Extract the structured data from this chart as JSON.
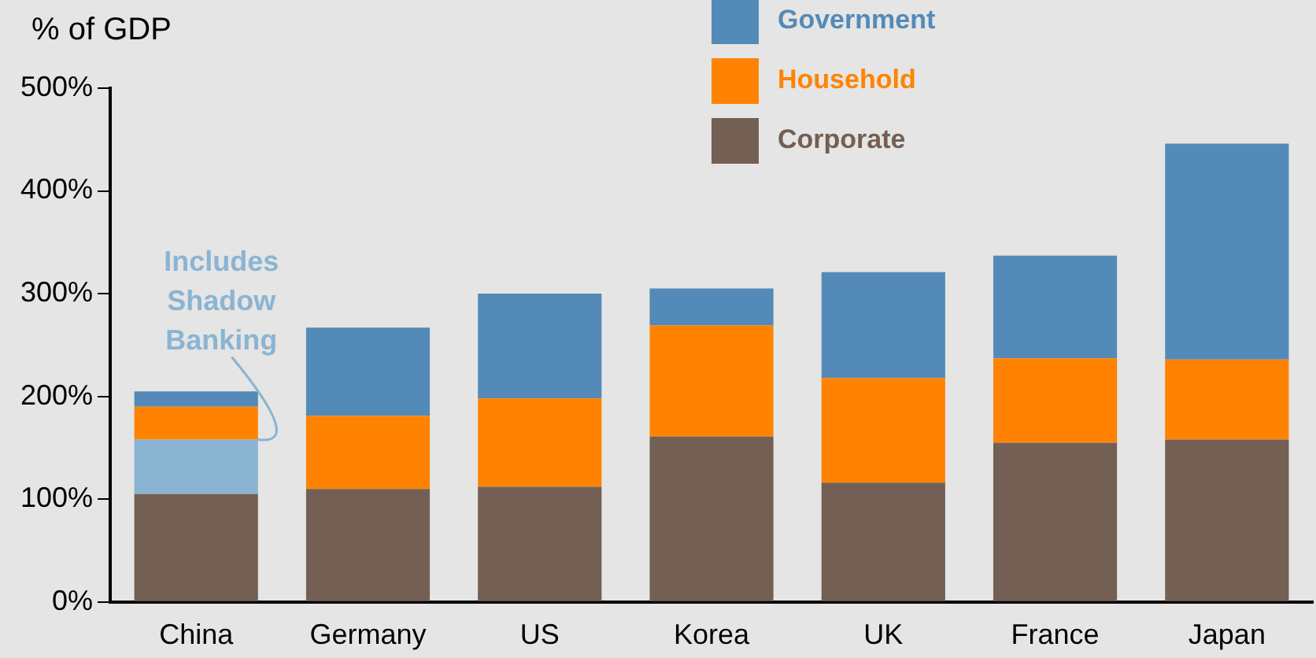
{
  "chart_data": {
    "type": "bar",
    "stacked": true,
    "ylabel": "% of GDP",
    "categories": [
      "China",
      "Germany",
      "US",
      "Korea",
      "UK",
      "France",
      "Japan"
    ],
    "series": [
      {
        "name": "Corporate",
        "color": "#735f53",
        "values": [
          105,
          110,
          112,
          161,
          116,
          155,
          158
        ]
      },
      {
        "color": "#8ab4d2",
        "values": [
          53,
          null,
          null,
          null,
          null,
          null,
          null
        ]
      },
      {
        "name": "Household",
        "color": "#ff8300",
        "values": [
          32,
          71,
          86,
          108,
          102,
          82,
          78
        ]
      },
      {
        "name": "Government",
        "color": "#548ab8",
        "values": [
          15,
          86,
          102,
          36,
          103,
          100,
          210
        ]
      }
    ],
    "ylim": [
      0,
      500
    ],
    "yticks": [
      {
        "value": 0,
        "label": "0%"
      },
      {
        "value": 100,
        "label": "100%"
      },
      {
        "value": 200,
        "label": "200%"
      },
      {
        "value": 300,
        "label": "300%"
      },
      {
        "value": 400,
        "label": "400%"
      },
      {
        "value": 500,
        "label": "500%"
      }
    ],
    "grid": false,
    "legend": "top",
    "annotations": [
      {
        "text": "Includes Shadow Banking",
        "x": "China",
        "y": 158
      }
    ]
  }
}
